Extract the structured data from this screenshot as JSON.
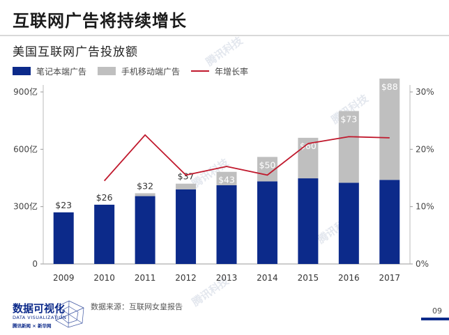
{
  "header": {
    "title": "互联网广告将持续增长",
    "chart_title": "美国互联网广告投放额"
  },
  "legend": {
    "items": [
      {
        "label": "笔记本端广告",
        "color": "#0c2a8a",
        "kind": "bar"
      },
      {
        "label": "手机移动端广告",
        "color": "#bfbfbf",
        "kind": "bar"
      },
      {
        "label": "年增长率",
        "color": "#c0182c",
        "kind": "line"
      }
    ]
  },
  "chart_data": {
    "type": "bar",
    "stacked": true,
    "categories": [
      "2009",
      "2010",
      "2011",
      "2012",
      "2013",
      "2014",
      "2015",
      "2016",
      "2017"
    ],
    "series": [
      {
        "name": "笔记本端广告",
        "values": [
          270,
          310,
          355,
          390,
          412,
          432,
          448,
          425,
          440
        ],
        "color": "#0c2a8a"
      },
      {
        "name": "手机移动端广告",
        "values": [
          0,
          0,
          15,
          30,
          70,
          128,
          212,
          375,
          530
        ],
        "color": "#bfbfbf"
      }
    ],
    "bar_labels": [
      "$23",
      "$26",
      "$32",
      "$37",
      "$43",
      "$50",
      "$60",
      "$73",
      "$88"
    ],
    "line_series": {
      "name": "年增长率",
      "axis": "right",
      "color": "#c0182c",
      "values": [
        null,
        14.5,
        22.5,
        15.5,
        17.0,
        15.5,
        21.0,
        22.2,
        22.0
      ]
    },
    "y_left": {
      "min": 0,
      "max": 900,
      "ticks": [
        0,
        300,
        600,
        900
      ],
      "tick_labels": [
        "0",
        "300亿",
        "600亿",
        "900亿"
      ]
    },
    "y_right": {
      "min": 0,
      "max": 30,
      "ticks": [
        0,
        10,
        20,
        30
      ],
      "tick_labels": [
        "0%",
        "10%",
        "20%",
        "30%"
      ]
    },
    "grid": false,
    "legend_position": "top-left"
  },
  "footer": {
    "source": "数据来源：互联网女皇报告",
    "page": "09",
    "logo_main": "数据可视化",
    "logo_sub": "DATA VISUALIZATION",
    "logo_partners": "腾讯新闻 × 新华网"
  },
  "watermark": "腾讯科技"
}
